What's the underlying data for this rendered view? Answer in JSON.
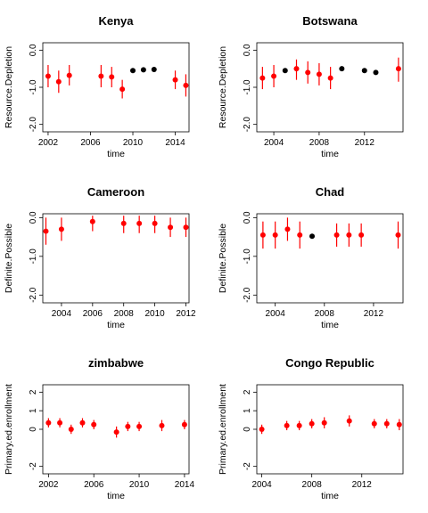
{
  "chart_data": [
    {
      "type": "scatter",
      "title": "Kenya",
      "xlabel": "time",
      "ylabel": "Resource.Depletion",
      "xlim": [
        2001.5,
        2015.3
      ],
      "ylim": [
        -2.2,
        0.2
      ],
      "xticks": [
        2002,
        2006,
        2010,
        2014
      ],
      "yticks": [
        0.0,
        -1.0,
        -2.0
      ],
      "ytick_labels": [
        "0.0",
        "-1.0",
        "-2.0"
      ],
      "points": [
        {
          "x": 2002,
          "y": -0.7,
          "lo": -1.0,
          "hi": -0.4,
          "color": "red"
        },
        {
          "x": 2003,
          "y": -0.85,
          "lo": -1.15,
          "hi": -0.55,
          "color": "red"
        },
        {
          "x": 2004,
          "y": -0.68,
          "lo": -0.95,
          "hi": -0.4,
          "color": "red"
        },
        {
          "x": 2007,
          "y": -0.7,
          "lo": -1.0,
          "hi": -0.4,
          "color": "red"
        },
        {
          "x": 2008,
          "y": -0.72,
          "lo": -1.0,
          "hi": -0.45,
          "color": "red"
        },
        {
          "x": 2009,
          "y": -1.05,
          "lo": -1.3,
          "hi": -0.8,
          "color": "red"
        },
        {
          "x": 2010,
          "y": -0.55,
          "color": "black"
        },
        {
          "x": 2011,
          "y": -0.53,
          "color": "black"
        },
        {
          "x": 2012,
          "y": -0.52,
          "color": "black"
        },
        {
          "x": 2014,
          "y": -0.8,
          "lo": -1.05,
          "hi": -0.55,
          "color": "red"
        },
        {
          "x": 2015,
          "y": -0.95,
          "lo": -1.25,
          "hi": -0.65,
          "color": "red"
        }
      ]
    },
    {
      "type": "scatter",
      "title": "Botswana",
      "xlabel": "time",
      "ylabel": "Resource.Depletion",
      "xlim": [
        2002.5,
        2015.4
      ],
      "ylim": [
        -2.2,
        0.2
      ],
      "xticks": [
        2004,
        2008,
        2012
      ],
      "yticks": [
        0.0,
        -1.0,
        -2.0
      ],
      "ytick_labels": [
        "0.0",
        "-1.0",
        "-2.0"
      ],
      "points": [
        {
          "x": 2003,
          "y": -0.75,
          "lo": -1.05,
          "hi": -0.45,
          "color": "red"
        },
        {
          "x": 2004,
          "y": -0.7,
          "lo": -1.0,
          "hi": -0.4,
          "color": "red"
        },
        {
          "x": 2005,
          "y": -0.55,
          "color": "black"
        },
        {
          "x": 2006,
          "y": -0.5,
          "lo": -0.8,
          "hi": -0.25,
          "color": "red"
        },
        {
          "x": 2007,
          "y": -0.6,
          "lo": -0.9,
          "hi": -0.3,
          "color": "red"
        },
        {
          "x": 2008,
          "y": -0.65,
          "lo": -0.95,
          "hi": -0.35,
          "color": "red"
        },
        {
          "x": 2009,
          "y": -0.75,
          "lo": -1.05,
          "hi": -0.45,
          "color": "red"
        },
        {
          "x": 2010,
          "y": -0.5,
          "color": "black"
        },
        {
          "x": 2012,
          "y": -0.55,
          "color": "black"
        },
        {
          "x": 2013,
          "y": -0.6,
          "color": "black"
        },
        {
          "x": 2015,
          "y": -0.5,
          "lo": -0.85,
          "hi": -0.2,
          "color": "red"
        }
      ]
    },
    {
      "type": "scatter",
      "title": "Cameroon",
      "xlabel": "time",
      "ylabel": "Definite.Possible",
      "xlim": [
        2002.8,
        2012.2
      ],
      "ylim": [
        -2.2,
        0.1
      ],
      "xticks": [
        2004,
        2006,
        2008,
        2010,
        2012
      ],
      "yticks": [
        0.0,
        -1.0,
        -2.0
      ],
      "ytick_labels": [
        "0.0",
        "-1.0",
        "-2.0"
      ],
      "points": [
        {
          "x": 2003,
          "y": -0.35,
          "lo": -0.7,
          "hi": 0.0,
          "color": "red"
        },
        {
          "x": 2004,
          "y": -0.3,
          "lo": -0.6,
          "hi": 0.0,
          "color": "red"
        },
        {
          "x": 2006,
          "y": -0.1,
          "lo": -0.35,
          "hi": 0.05,
          "color": "red"
        },
        {
          "x": 2008,
          "y": -0.15,
          "lo": -0.4,
          "hi": 0.05,
          "color": "red"
        },
        {
          "x": 2009,
          "y": -0.15,
          "lo": -0.4,
          "hi": 0.05,
          "color": "red"
        },
        {
          "x": 2010,
          "y": -0.15,
          "lo": -0.4,
          "hi": 0.05,
          "color": "red"
        },
        {
          "x": 2011,
          "y": -0.25,
          "lo": -0.5,
          "hi": 0.0,
          "color": "red"
        },
        {
          "x": 2012,
          "y": -0.25,
          "lo": -0.5,
          "hi": 0.0,
          "color": "red"
        }
      ]
    },
    {
      "type": "scatter",
      "title": "Chad",
      "xlabel": "time",
      "ylabel": "Definite.Possible",
      "xlim": [
        2002.5,
        2014.4
      ],
      "ylim": [
        -2.2,
        0.1
      ],
      "xticks": [
        2004,
        2008,
        2012
      ],
      "yticks": [
        0.0,
        -1.0,
        -2.0
      ],
      "ytick_labels": [
        "0.0",
        "-1.0",
        "-2.0"
      ],
      "points": [
        {
          "x": 2003,
          "y": -0.45,
          "lo": -0.8,
          "hi": -0.1,
          "color": "red"
        },
        {
          "x": 2004,
          "y": -0.45,
          "lo": -0.8,
          "hi": -0.1,
          "color": "red"
        },
        {
          "x": 2005,
          "y": -0.3,
          "lo": -0.6,
          "hi": 0.0,
          "color": "red"
        },
        {
          "x": 2006,
          "y": -0.45,
          "lo": -0.8,
          "hi": -0.1,
          "color": "red"
        },
        {
          "x": 2007,
          "y": -0.48,
          "color": "black"
        },
        {
          "x": 2009,
          "y": -0.45,
          "lo": -0.75,
          "hi": -0.15,
          "color": "red"
        },
        {
          "x": 2010,
          "y": -0.45,
          "lo": -0.75,
          "hi": -0.15,
          "color": "red"
        },
        {
          "x": 2011,
          "y": -0.45,
          "lo": -0.75,
          "hi": -0.15,
          "color": "red"
        },
        {
          "x": 2014,
          "y": -0.45,
          "lo": -0.8,
          "hi": -0.1,
          "color": "red"
        }
      ]
    },
    {
      "type": "scatter",
      "title": "zimbabwe",
      "xlabel": "time",
      "ylabel": "Primary.ed.enrollment",
      "xlim": [
        2001.5,
        2014.4
      ],
      "ylim": [
        -2.4,
        2.4
      ],
      "xticks": [
        2002,
        2006,
        2010,
        2014
      ],
      "yticks": [
        -2,
        0,
        1,
        2
      ],
      "ytick_labels": [
        "-2",
        "0",
        "1",
        "2"
      ],
      "points": [
        {
          "x": 2002,
          "y": 0.35,
          "lo": 0.1,
          "hi": 0.6,
          "color": "red"
        },
        {
          "x": 2003,
          "y": 0.35,
          "lo": 0.1,
          "hi": 0.6,
          "color": "red"
        },
        {
          "x": 2004,
          "y": 0.0,
          "lo": -0.25,
          "hi": 0.25,
          "color": "red"
        },
        {
          "x": 2005,
          "y": 0.35,
          "lo": 0.1,
          "hi": 0.6,
          "color": "red"
        },
        {
          "x": 2006,
          "y": 0.25,
          "lo": 0.0,
          "hi": 0.5,
          "color": "red"
        },
        {
          "x": 2008,
          "y": -0.15,
          "lo": -0.45,
          "hi": 0.15,
          "color": "red"
        },
        {
          "x": 2009,
          "y": 0.15,
          "lo": -0.1,
          "hi": 0.4,
          "color": "red"
        },
        {
          "x": 2010,
          "y": 0.15,
          "lo": -0.1,
          "hi": 0.4,
          "color": "red"
        },
        {
          "x": 2012,
          "y": 0.2,
          "lo": -0.1,
          "hi": 0.5,
          "color": "red"
        },
        {
          "x": 2014,
          "y": 0.25,
          "lo": 0.0,
          "hi": 0.5,
          "color": "red"
        }
      ]
    },
    {
      "type": "scatter",
      "title": "Congo Republic",
      "xlabel": "time",
      "ylabel": "Primary.ed.enrollment",
      "xlim": [
        2003.6,
        2015.3
      ],
      "ylim": [
        -2.4,
        2.4
      ],
      "xticks": [
        2004,
        2008,
        2012
      ],
      "yticks": [
        -2,
        0,
        1,
        2
      ],
      "ytick_labels": [
        "-2",
        "0",
        "1",
        "2"
      ],
      "points": [
        {
          "x": 2004,
          "y": 0.0,
          "lo": -0.25,
          "hi": 0.25,
          "color": "red"
        },
        {
          "x": 2006,
          "y": 0.2,
          "lo": -0.05,
          "hi": 0.45,
          "color": "red"
        },
        {
          "x": 2007,
          "y": 0.2,
          "lo": -0.05,
          "hi": 0.45,
          "color": "red"
        },
        {
          "x": 2008,
          "y": 0.3,
          "lo": 0.05,
          "hi": 0.55,
          "color": "red"
        },
        {
          "x": 2009,
          "y": 0.35,
          "lo": 0.05,
          "hi": 0.65,
          "color": "red"
        },
        {
          "x": 2011,
          "y": 0.45,
          "lo": 0.15,
          "hi": 0.75,
          "color": "red"
        },
        {
          "x": 2013,
          "y": 0.3,
          "lo": 0.05,
          "hi": 0.55,
          "color": "red"
        },
        {
          "x": 2014,
          "y": 0.3,
          "lo": 0.05,
          "hi": 0.55,
          "color": "red"
        },
        {
          "x": 2015,
          "y": 0.25,
          "lo": -0.05,
          "hi": 0.55,
          "color": "red"
        }
      ]
    }
  ],
  "colors": {
    "red": "#ff0000",
    "black": "#000000"
  }
}
